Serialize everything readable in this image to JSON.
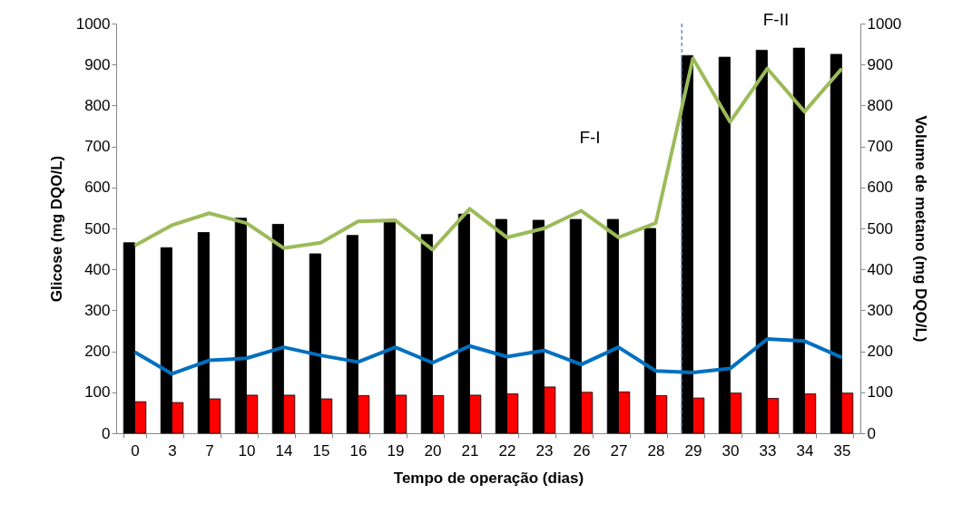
{
  "chart_data": {
    "type": "bar",
    "xlabel": "Tempo de operação (dias)",
    "ylabel": "Glicose (mg DQO/L)",
    "y2label": "Volume de metano (mg DQO/L)",
    "categories": [
      "0",
      "3",
      "7",
      "10",
      "14",
      "15",
      "16",
      "19",
      "20",
      "21",
      "22",
      "23",
      "26",
      "27",
      "28",
      "29",
      "30",
      "33",
      "34",
      "35"
    ],
    "series": [
      {
        "color": "#000000",
        "values": [
          465,
          453,
          490,
          525,
          510,
          438,
          483,
          515,
          485,
          535,
          522,
          520,
          522,
          522,
          500,
          922,
          918,
          935,
          940,
          925
        ]
      },
      {
        "color": "#ff0000",
        "values": [
          77,
          75,
          84,
          93,
          93,
          84,
          92,
          93,
          92,
          93,
          96,
          113,
          100,
          101,
          92,
          86,
          98,
          85,
          96,
          98
        ]
      },
      {
        "type": "line",
        "axis": "y2",
        "color": "#9bbb59",
        "values": [
          458,
          508,
          537,
          513,
          452,
          465,
          517,
          520,
          448,
          548,
          478,
          500,
          543,
          478,
          513,
          915,
          760,
          890,
          785,
          890
        ]
      },
      {
        "type": "line",
        "axis": "y2",
        "color": "#0070c0",
        "values": [
          198,
          145,
          178,
          183,
          210,
          190,
          174,
          210,
          172,
          213,
          187,
          202,
          168,
          210,
          152,
          148,
          158,
          230,
          225,
          185
        ]
      }
    ],
    "ylim": [
      0,
      1000
    ],
    "yticks": [
      0,
      100,
      200,
      300,
      400,
      500,
      600,
      700,
      800,
      900,
      1000
    ],
    "y2lim": [
      0,
      1000
    ],
    "y2ticks": [
      0,
      100,
      200,
      300,
      400,
      500,
      600,
      700,
      800,
      900,
      1000
    ],
    "ref_lines": [
      {
        "axis": "x",
        "value": "29",
        "color": "#4472c4",
        "line_style": "dashed"
      }
    ],
    "annotations": [
      "F-I",
      "F-II"
    ]
  }
}
